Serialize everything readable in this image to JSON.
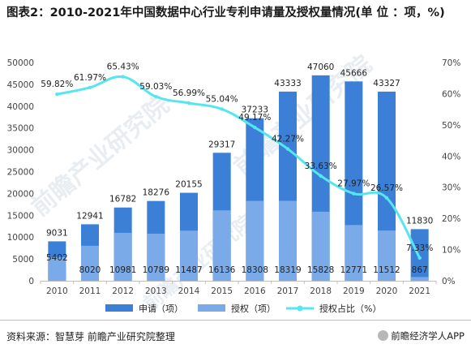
{
  "title": "图表2：2010-2021年中国数据中心行业专利申请量及授权量情况(单 位 ：项，%)",
  "watermark": "前瞻产业研究院",
  "footer": {
    "source": "资料来源：智慧芽 前瞻产业研究院整理",
    "brand": "前瞻经济学人APP"
  },
  "colors": {
    "apply": "#3b80d6",
    "grant": "#7aaae8",
    "ratio": "#55e6f0"
  },
  "chart_data": {
    "type": "bar",
    "categories": [
      "2010",
      "2011",
      "2012",
      "2013",
      "2014",
      "2015",
      "2016",
      "2017",
      "2018",
      "2019",
      "2020",
      "2021"
    ],
    "series": [
      {
        "name": "申请（项）",
        "type": "bar",
        "axis": "left",
        "values": [
          9031,
          12941,
          16782,
          18276,
          20155,
          29317,
          37233,
          43333,
          47060,
          45666,
          43327,
          11830
        ]
      },
      {
        "name": "授权（项）",
        "type": "bar",
        "axis": "left",
        "values": [
          5402,
          8020,
          10981,
          10789,
          11487,
          16136,
          18308,
          18319,
          15828,
          12771,
          11512,
          867
        ]
      },
      {
        "name": "授权占比（%）",
        "type": "line",
        "axis": "right",
        "values": [
          59.82,
          61.97,
          65.43,
          59.03,
          56.99,
          55.04,
          49.17,
          42.27,
          33.63,
          27.97,
          26.57,
          7.33
        ]
      }
    ],
    "y_left": {
      "min": 0,
      "max": 50000,
      "step": 5000,
      "ticks": [
        "0",
        "5000",
        "10000",
        "15000",
        "20000",
        "25000",
        "30000",
        "35000",
        "40000",
        "45000",
        "50000"
      ]
    },
    "y_right": {
      "min": 0,
      "max": 70,
      "step": 10,
      "ticks": [
        "0%",
        "10%",
        "20%",
        "30%",
        "40%",
        "50%",
        "60%",
        "70%"
      ]
    },
    "apply_labels": [
      "9031",
      "12941",
      "16782",
      "18276",
      "20155",
      "29317",
      "37233",
      "43333",
      "47060",
      "45666",
      "43327",
      "11830"
    ],
    "grant_labels": [
      "5402",
      "8020",
      "10981",
      "10789",
      "11487",
      "16136",
      "18308",
      "18319",
      "15828",
      "12771",
      "11512",
      "867"
    ],
    "ratio_labels": [
      "59.82%",
      "61.97%",
      "65.43%",
      "59.03%",
      "56.99%",
      "55.04%",
      "49.17%",
      "42.27%",
      "33.63%",
      "27.97%",
      "26.57%",
      "7.33%"
    ],
    "legend": {
      "position": "bottom",
      "items": [
        "申请（项）",
        "授权（项）",
        "授权占比（%）"
      ]
    },
    "grid": false
  }
}
